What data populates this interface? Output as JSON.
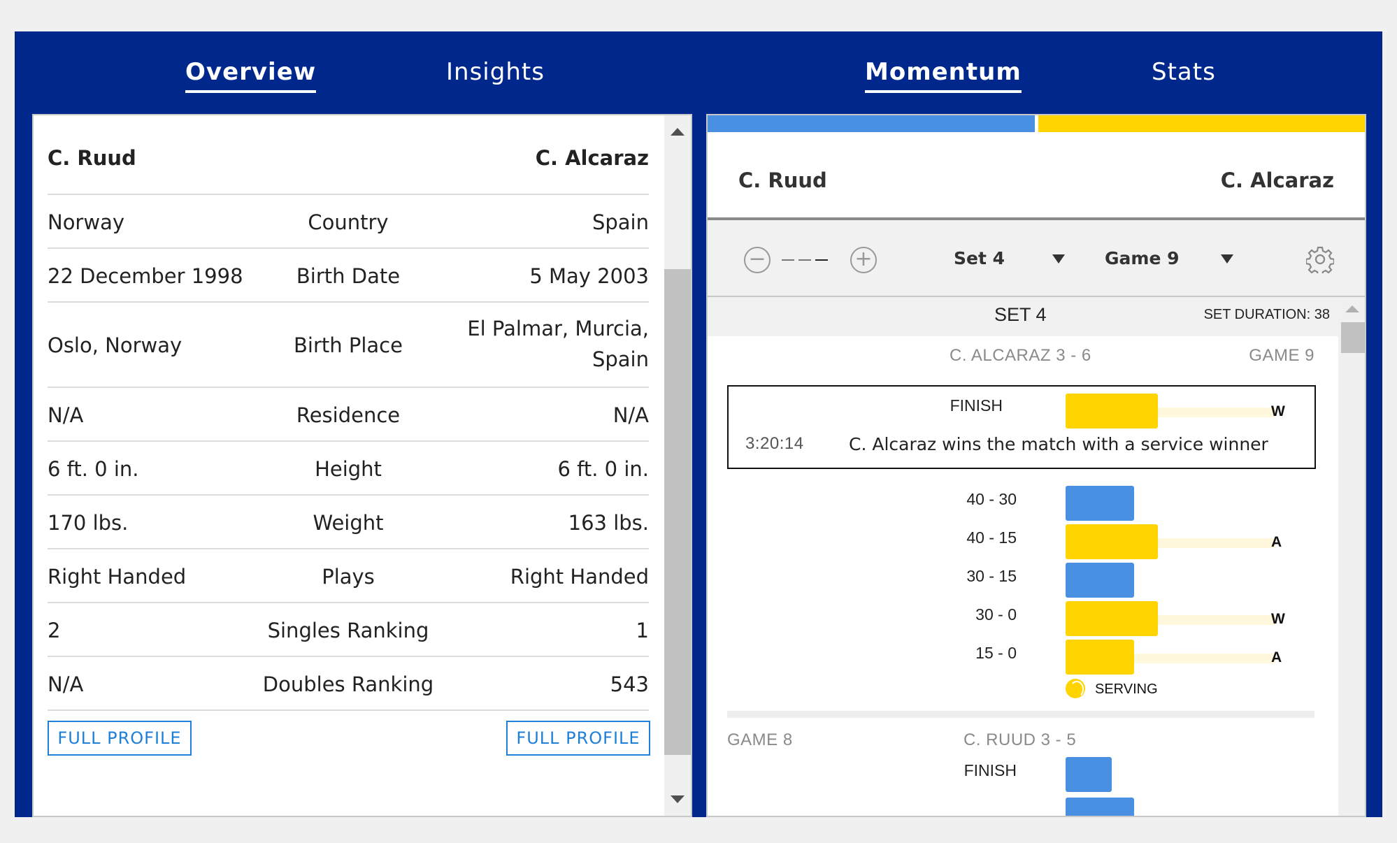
{
  "tabs": {
    "overview": "Overview",
    "insights": "Insights",
    "momentum": "Momentum",
    "stats": "Stats"
  },
  "profile": {
    "player1": "C. Ruud",
    "player2": "C. Alcaraz",
    "rows": [
      {
        "left": "Norway",
        "label": "Country",
        "right": "Spain"
      },
      {
        "left": "22 December 1998",
        "label": "Birth Date",
        "right": "5 May 2003"
      },
      {
        "left": "Oslo, Norway",
        "label": "Birth Place",
        "right": "El Palmar, Murcia,",
        "right2": "Spain"
      },
      {
        "left": "N/A",
        "label": "Residence",
        "right": "N/A"
      },
      {
        "left": "6 ft. 0 in.",
        "label": "Height",
        "right": "6 ft. 0 in."
      },
      {
        "left": "170 lbs.",
        "label": "Weight",
        "right": "163 lbs."
      },
      {
        "left": "Right Handed",
        "label": "Plays",
        "right": "Right Handed"
      },
      {
        "left": "2",
        "label": "Singles Ranking",
        "right": "1"
      },
      {
        "left": "N/A",
        "label": "Doubles Ranking",
        "right": "543"
      }
    ],
    "full_profile_label": "FULL PROFILE"
  },
  "momentum": {
    "player1": "C. Ruud",
    "player2": "C. Alcaraz",
    "colors": {
      "player1": "#4a90e2",
      "player2": "#ffd400"
    },
    "zoom_level": "———",
    "set_select": "Set 4",
    "game_select": "Game 9",
    "set_title": "SET 4",
    "set_duration": "SET DURATION: 38",
    "game9": {
      "winner_score": "C. ALCARAZ 3 - 6",
      "label": "GAME 9",
      "finish_label": "FINISH",
      "finish_result": "W",
      "finish_time": "3:20:14",
      "finish_text": "C. Alcaraz wins the match with a service winner",
      "points": [
        {
          "score": "40 - 30",
          "player": "player1",
          "result": ""
        },
        {
          "score": "40 - 15",
          "player": "player2",
          "result": "A"
        },
        {
          "score": "30 - 15",
          "player": "player1",
          "result": ""
        },
        {
          "score": "30 - 0",
          "player": "player2",
          "result": "W"
        },
        {
          "score": "15 - 0",
          "player": "player2",
          "result": "A"
        }
      ],
      "serving_label": "SERVING"
    },
    "game8": {
      "label": "GAME 8",
      "winner_score": "C. RUUD 3 - 5",
      "finish_label": "FINISH"
    }
  }
}
